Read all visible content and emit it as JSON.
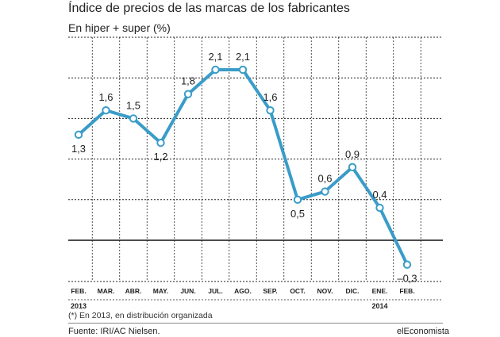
{
  "chart_data": {
    "type": "line",
    "title": "Índice de precios de las marcas de los fabricantes",
    "subtitle": "En hiper + super (%)",
    "categories": [
      "FEB.",
      "MAR.",
      "ABR.",
      "MAY.",
      "JUN.",
      "JUL.",
      "AGO.",
      "SEP.",
      "OCT.",
      "NOV.",
      "DIC.",
      "ENE.",
      "FEB."
    ],
    "value_labels": [
      "1,3",
      "1,6",
      "1,5",
      "1,2",
      "1,8",
      "2,1",
      "2,1",
      "1,6",
      "0,5",
      "0,6",
      "0,9",
      "0,4",
      "–0,3"
    ],
    "year_labels": [
      {
        "text": "2013",
        "category_index": 0
      },
      {
        "text": "2014",
        "category_index": 11
      }
    ],
    "series": [
      {
        "values": [
          1.3,
          1.6,
          1.5,
          1.2,
          1.8,
          2.1,
          2.1,
          1.6,
          0.5,
          0.6,
          0.9,
          0.4,
          -0.3
        ]
      }
    ],
    "ylim": [
      -0.5,
      2.5
    ],
    "grid": true,
    "line_color": "#3a9cc8",
    "grid_color": "#222222",
    "zero_line_color": "#111111",
    "label_positions": [
      "below",
      "above",
      "above",
      "below",
      "above",
      "above",
      "above",
      "above",
      "below",
      "above",
      "above",
      "above",
      "below"
    ]
  },
  "footnote": "(*) En 2013, en distribución organizada",
  "source": "Fuente: IRI/AC Nielsen.",
  "brand": "elEconomista"
}
